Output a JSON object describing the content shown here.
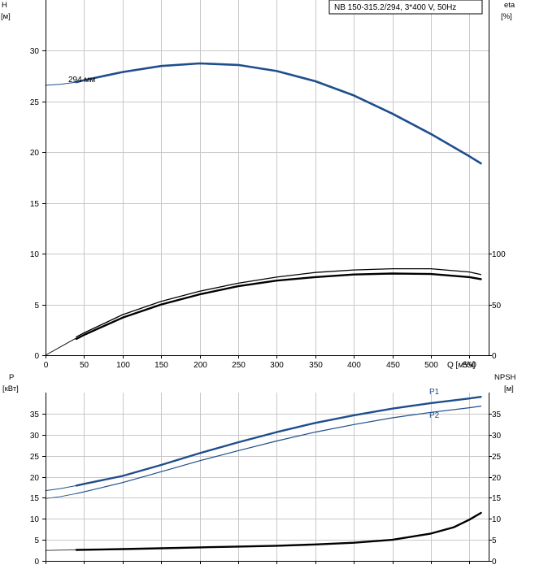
{
  "title": "NB 150-315.2/294, 3*400 V, 50Hz",
  "colors": {
    "blue": "#1f4e8c",
    "black": "#000000",
    "grid": "#c8c8c8"
  },
  "chart_data": [
    {
      "type": "line",
      "panel": "top",
      "grid": true,
      "x_axis": {
        "label": "Q [м³/ч]",
        "range": [
          0,
          575
        ],
        "ticks": [
          0,
          50,
          100,
          150,
          200,
          250,
          300,
          350,
          400,
          450,
          500,
          550
        ]
      },
      "y_left": {
        "label_line1": "H",
        "label_line2": "[м]",
        "range": [
          0,
          35
        ],
        "ticks": [
          0,
          5,
          10,
          15,
          20,
          25,
          30
        ]
      },
      "y_right": {
        "label_line1": "eta",
        "label_line2": "[%]",
        "range": [
          0,
          350
        ],
        "ticks": [
          0,
          50,
          100
        ]
      },
      "curve_label": "294 мм",
      "series": [
        {
          "axis": "left",
          "color": "#1f4e8c",
          "width": 2.6,
          "dash": "solid",
          "x": [
            40,
            50,
            100,
            150,
            200,
            250,
            300,
            350,
            400,
            450,
            500,
            550,
            565
          ],
          "y": [
            26.9,
            27.1,
            27.9,
            28.5,
            28.75,
            28.6,
            28.0,
            27.0,
            25.6,
            23.8,
            21.8,
            19.6,
            18.9
          ]
        },
        {
          "axis": "left",
          "color": "#1f4e8c",
          "width": 1.0,
          "dash": "solid",
          "x": [
            0,
            20,
            40
          ],
          "y": [
            26.6,
            26.7,
            26.9
          ]
        },
        {
          "axis": "right",
          "color": "#000000",
          "width": 1.3,
          "dash": "solid",
          "x": [
            40,
            50,
            100,
            150,
            200,
            250,
            300,
            350,
            400,
            450,
            500,
            550,
            565
          ],
          "y": [
            18,
            22,
            40,
            53,
            63,
            71,
            77,
            81.5,
            84,
            85.2,
            85.2,
            82,
            79.5
          ]
        },
        {
          "axis": "right",
          "color": "#000000",
          "width": 2.4,
          "dash": "solid",
          "x": [
            40,
            50,
            100,
            150,
            200,
            250,
            300,
            350,
            400,
            450,
            500,
            550,
            565
          ],
          "y": [
            16,
            20,
            37,
            50,
            60,
            68,
            73.5,
            77,
            79.5,
            80.5,
            80,
            77,
            75
          ]
        },
        {
          "axis": "right",
          "color": "#000000",
          "width": 0.9,
          "dash": "solid",
          "x": [
            0,
            40
          ],
          "y": [
            0,
            17
          ]
        }
      ]
    },
    {
      "type": "line",
      "panel": "bottom",
      "grid": true,
      "x_axis": {
        "range": [
          0,
          575
        ],
        "ticks": [
          0,
          50,
          100,
          150,
          200,
          250,
          300,
          350,
          400,
          450,
          500,
          550
        ]
      },
      "y_left": {
        "label_line1": "P",
        "label_line2": "[кВт]",
        "range": [
          0,
          40
        ],
        "ticks": [
          0,
          5,
          10,
          15,
          20,
          25,
          30,
          35
        ]
      },
      "y_right": {
        "label_line1": "NPSH",
        "label_line2": "[м]",
        "range": [
          0,
          40
        ],
        "ticks": [
          0,
          5,
          10,
          15,
          20,
          25,
          30,
          35
        ]
      },
      "series": [
        {
          "name": "P1",
          "axis": "left",
          "color": "#1f4e8c",
          "width": 2.4,
          "dash": "solid",
          "x": [
            40,
            50,
            100,
            150,
            200,
            250,
            300,
            350,
            400,
            450,
            500,
            550,
            565
          ],
          "y": [
            17.9,
            18.3,
            20.2,
            22.8,
            25.6,
            28.2,
            30.6,
            32.8,
            34.6,
            36.2,
            37.5,
            38.6,
            39.0
          ]
        },
        {
          "axis": "left",
          "color": "#1f4e8c",
          "width": 1.0,
          "dash": "solid",
          "x": [
            0,
            20,
            40
          ],
          "y": [
            16.7,
            17.2,
            17.9
          ]
        },
        {
          "name": "P2",
          "axis": "left",
          "color": "#1f4e8c",
          "width": 1.2,
          "dash": "solid",
          "x": [
            40,
            50,
            100,
            150,
            200,
            250,
            300,
            350,
            400,
            450,
            500,
            550,
            565
          ],
          "y": [
            16.0,
            16.4,
            18.6,
            21.2,
            23.8,
            26.2,
            28.5,
            30.6,
            32.4,
            34.0,
            35.3,
            36.4,
            36.8
          ]
        },
        {
          "axis": "left",
          "color": "#1f4e8c",
          "width": 0.8,
          "dash": "solid",
          "x": [
            0,
            20,
            40
          ],
          "y": [
            14.8,
            15.3,
            16.0
          ]
        },
        {
          "axis": "right",
          "color": "#000000",
          "width": 2.4,
          "dash": "solid",
          "x": [
            40,
            100,
            150,
            200,
            250,
            300,
            350,
            400,
            450,
            500,
            530,
            550,
            565
          ],
          "y": [
            2.6,
            2.8,
            3.0,
            3.2,
            3.4,
            3.6,
            3.9,
            4.3,
            5.0,
            6.5,
            8.0,
            9.8,
            11.4
          ]
        },
        {
          "axis": "right",
          "color": "#000000",
          "width": 0.8,
          "dash": "solid",
          "x": [
            0,
            40
          ],
          "y": [
            2.5,
            2.6
          ]
        }
      ]
    }
  ]
}
